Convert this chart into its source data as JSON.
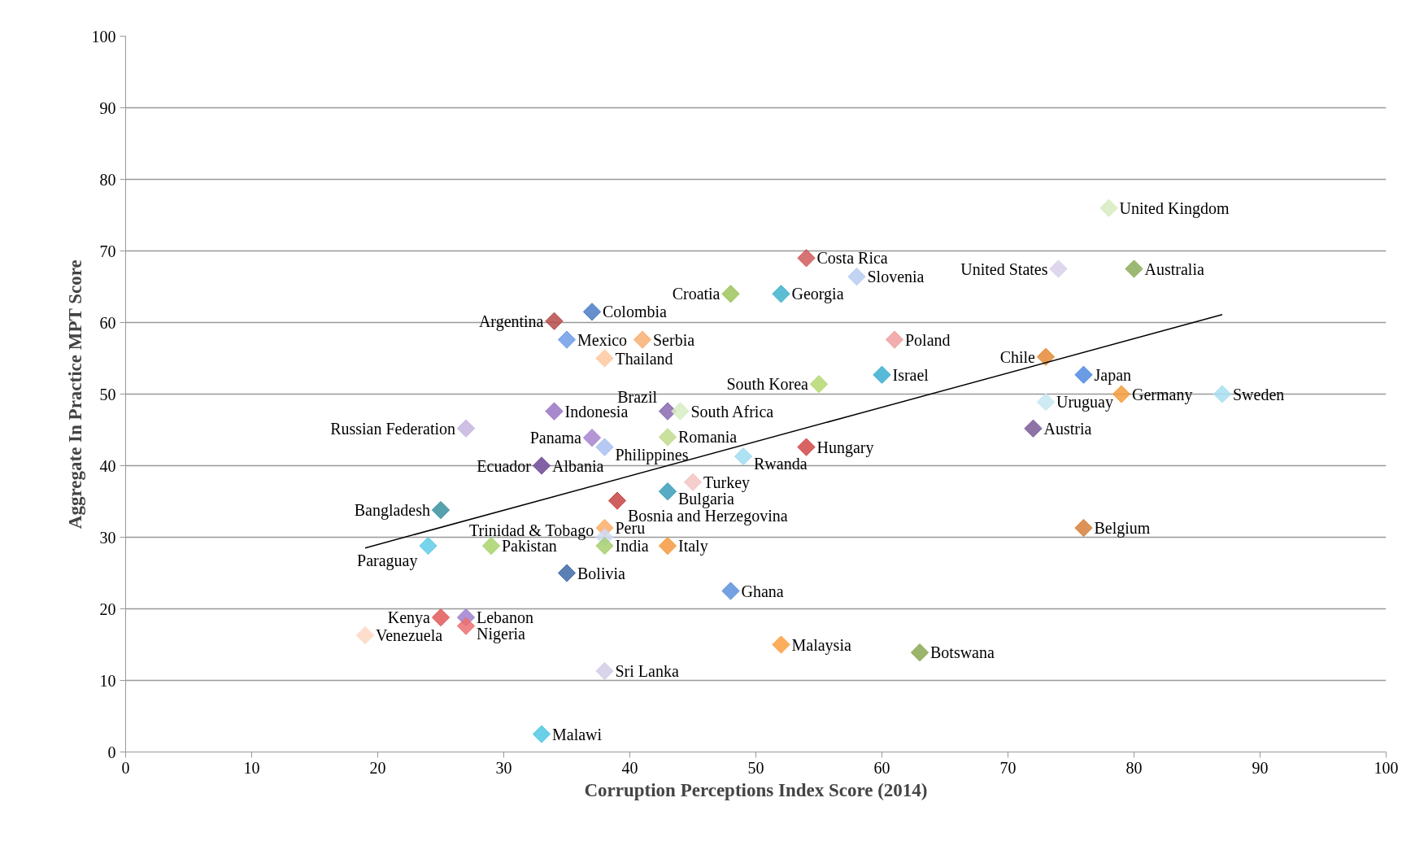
{
  "chart_data": {
    "type": "scatter",
    "xlabel": "Corruption Perceptions Index Score (2014)",
    "ylabel": "Aggregate In Practice MPT Score",
    "xlim": [
      0,
      100
    ],
    "ylim": [
      0,
      100
    ],
    "xticks": [
      0,
      10,
      20,
      30,
      40,
      50,
      60,
      70,
      80,
      90,
      100
    ],
    "yticks": [
      0,
      10,
      20,
      30,
      40,
      50,
      60,
      70,
      80,
      90,
      100
    ],
    "grid": "y",
    "marker": "diamond",
    "series": [
      {
        "name": "United Kingdom",
        "color": "#d7ecc0",
        "x": [
          78
        ],
        "values": [
          76
        ]
      },
      {
        "name": "United States",
        "color": "#d9d0ea",
        "x": [
          74
        ],
        "values": [
          67.5
        ]
      },
      {
        "name": "Australia",
        "color": "#8cac5a",
        "x": [
          80
        ],
        "values": [
          67.5
        ]
      },
      {
        "name": "Costa Rica",
        "color": "#d05a5a",
        "x": [
          54
        ],
        "values": [
          69
        ]
      },
      {
        "name": "Slovenia",
        "color": "#b9cdf0",
        "x": [
          58
        ],
        "values": [
          66.4
        ]
      },
      {
        "name": "Croatia",
        "color": "#9cc45a",
        "x": [
          48
        ],
        "values": [
          64
        ]
      },
      {
        "name": "Georgia",
        "color": "#3fb3cc",
        "x": [
          52
        ],
        "values": [
          64
        ]
      },
      {
        "name": "Colombia",
        "color": "#4a7cc4",
        "x": [
          37
        ],
        "values": [
          61.5
        ]
      },
      {
        "name": "Argentina",
        "color": "#b64a4a",
        "x": [
          34
        ],
        "values": [
          60.2
        ]
      },
      {
        "name": "Mexico",
        "color": "#6f9ee8",
        "x": [
          35
        ],
        "values": [
          57.6
        ]
      },
      {
        "name": "Serbia",
        "color": "#f8b073",
        "x": [
          41
        ],
        "values": [
          57.6
        ]
      },
      {
        "name": "Thailand",
        "color": "#fdc9a0",
        "x": [
          38
        ],
        "values": [
          55
        ]
      },
      {
        "name": "Poland",
        "color": "#f0a0a0",
        "x": [
          61
        ],
        "values": [
          57.6
        ]
      },
      {
        "name": "Chile",
        "color": "#e58a35",
        "x": [
          73
        ],
        "values": [
          55.2
        ]
      },
      {
        "name": "Israel",
        "color": "#3aaed0",
        "x": [
          60
        ],
        "values": [
          52.7
        ]
      },
      {
        "name": "South Korea",
        "color": "#b5d870",
        "x": [
          55
        ],
        "values": [
          51.4
        ]
      },
      {
        "name": "Japan",
        "color": "#4f8be0",
        "x": [
          76
        ],
        "values": [
          52.7
        ]
      },
      {
        "name": "Germany",
        "color": "#f59c3c",
        "x": [
          79
        ],
        "values": [
          50
        ]
      },
      {
        "name": "Sweden",
        "color": "#a8e0f0",
        "x": [
          87
        ],
        "values": [
          50
        ]
      },
      {
        "name": "Uruguay",
        "color": "#c5e8f2",
        "x": [
          73
        ],
        "values": [
          48.9
        ]
      },
      {
        "name": "Austria",
        "color": "#7a5a98",
        "x": [
          72
        ],
        "values": [
          45.2
        ]
      },
      {
        "name": "Indonesia",
        "color": "#9a74c4",
        "x": [
          34
        ],
        "values": [
          47.6
        ]
      },
      {
        "name": "Brazil",
        "color": "#8a6ab0",
        "x": [
          43
        ],
        "values": [
          47.6
        ]
      },
      {
        "name": "South Africa",
        "color": "#d8ecc4",
        "x": [
          44
        ],
        "values": [
          47.6
        ]
      },
      {
        "name": "Russian Federation",
        "color": "#c6b4e0",
        "x": [
          27
        ],
        "values": [
          45.2
        ]
      },
      {
        "name": "Panama",
        "color": "#a784d0",
        "x": [
          37
        ],
        "values": [
          43.9
        ]
      },
      {
        "name": "Romania",
        "color": "#c0dc8c",
        "x": [
          43
        ],
        "values": [
          44
        ]
      },
      {
        "name": "Philippines",
        "color": "#a8c0f0",
        "x": [
          38
        ],
        "values": [
          42.6
        ]
      },
      {
        "name": "Rwanda",
        "color": "#a0dcf0",
        "x": [
          49
        ],
        "values": [
          41.3
        ]
      },
      {
        "name": "Hungary",
        "color": "#d04848",
        "x": [
          54
        ],
        "values": [
          42.6
        ]
      },
      {
        "name": "Albania",
        "color": "#8e6cb0",
        "x": [
          33
        ],
        "values": [
          40
        ]
      },
      {
        "name": "Ecuador",
        "color": "#7c5ca0",
        "x": [
          33
        ],
        "values": [
          40
        ]
      },
      {
        "name": "Turkey",
        "color": "#f4c4c4",
        "x": [
          45
        ],
        "values": [
          37.7
        ]
      },
      {
        "name": "Bulgaria",
        "color": "#3a9cb8",
        "x": [
          43
        ],
        "values": [
          36.4
        ]
      },
      {
        "name": "Bosnia and Herzegovina",
        "color": "#c84444",
        "x": [
          39
        ],
        "values": [
          35.1
        ]
      },
      {
        "name": "Bangladesh",
        "color": "#3a8fa0",
        "x": [
          25
        ],
        "values": [
          33.8
        ]
      },
      {
        "name": "Belgium",
        "color": "#d7803a",
        "x": [
          76
        ],
        "values": [
          31.3
        ]
      },
      {
        "name": "Peru",
        "color": "#fbae68",
        "x": [
          38
        ],
        "values": [
          31.3
        ]
      },
      {
        "name": "Trinidad & Tobago",
        "color": "#cfdcf4",
        "x": [
          38
        ],
        "values": [
          30
        ]
      },
      {
        "name": "India",
        "color": "#a8d070",
        "x": [
          38
        ],
        "values": [
          28.8
        ]
      },
      {
        "name": "Italy",
        "color": "#f49a40",
        "x": [
          43
        ],
        "values": [
          28.8
        ]
      },
      {
        "name": "Paraguay",
        "color": "#60cce8",
        "x": [
          24
        ],
        "values": [
          28.8
        ]
      },
      {
        "name": "Pakistan",
        "color": "#a8d46c",
        "x": [
          29
        ],
        "values": [
          28.8
        ]
      },
      {
        "name": "Bolivia",
        "color": "#3e6aa8",
        "x": [
          35
        ],
        "values": [
          25
        ]
      },
      {
        "name": "Ghana",
        "color": "#5a90dc",
        "x": [
          48
        ],
        "values": [
          22.5
        ]
      },
      {
        "name": "Kenya",
        "color": "#e05858",
        "x": [
          25
        ],
        "values": [
          18.8
        ]
      },
      {
        "name": "Lebanon",
        "color": "#a080d0",
        "x": [
          27
        ],
        "values": [
          18.8
        ]
      },
      {
        "name": "Nigeria",
        "color": "#ec7070",
        "x": [
          27
        ],
        "values": [
          17.6
        ]
      },
      {
        "name": "Venezuela",
        "color": "#fdd8c4",
        "x": [
          19
        ],
        "values": [
          16.3
        ]
      },
      {
        "name": "Malaysia",
        "color": "#fba040",
        "x": [
          52
        ],
        "values": [
          15
        ]
      },
      {
        "name": "Botswana",
        "color": "#8aa854",
        "x": [
          63
        ],
        "values": [
          13.9
        ]
      },
      {
        "name": "Sri Lanka",
        "color": "#d4cce8",
        "x": [
          38
        ],
        "values": [
          11.3
        ]
      },
      {
        "name": "Malawi",
        "color": "#50c8e4",
        "x": [
          33
        ],
        "values": [
          2.5
        ]
      },
      {
        "type": "line",
        "color": "#000000",
        "marker": "none",
        "x": [
          19,
          87
        ],
        "values": [
          28.5,
          61.1
        ]
      }
    ]
  }
}
